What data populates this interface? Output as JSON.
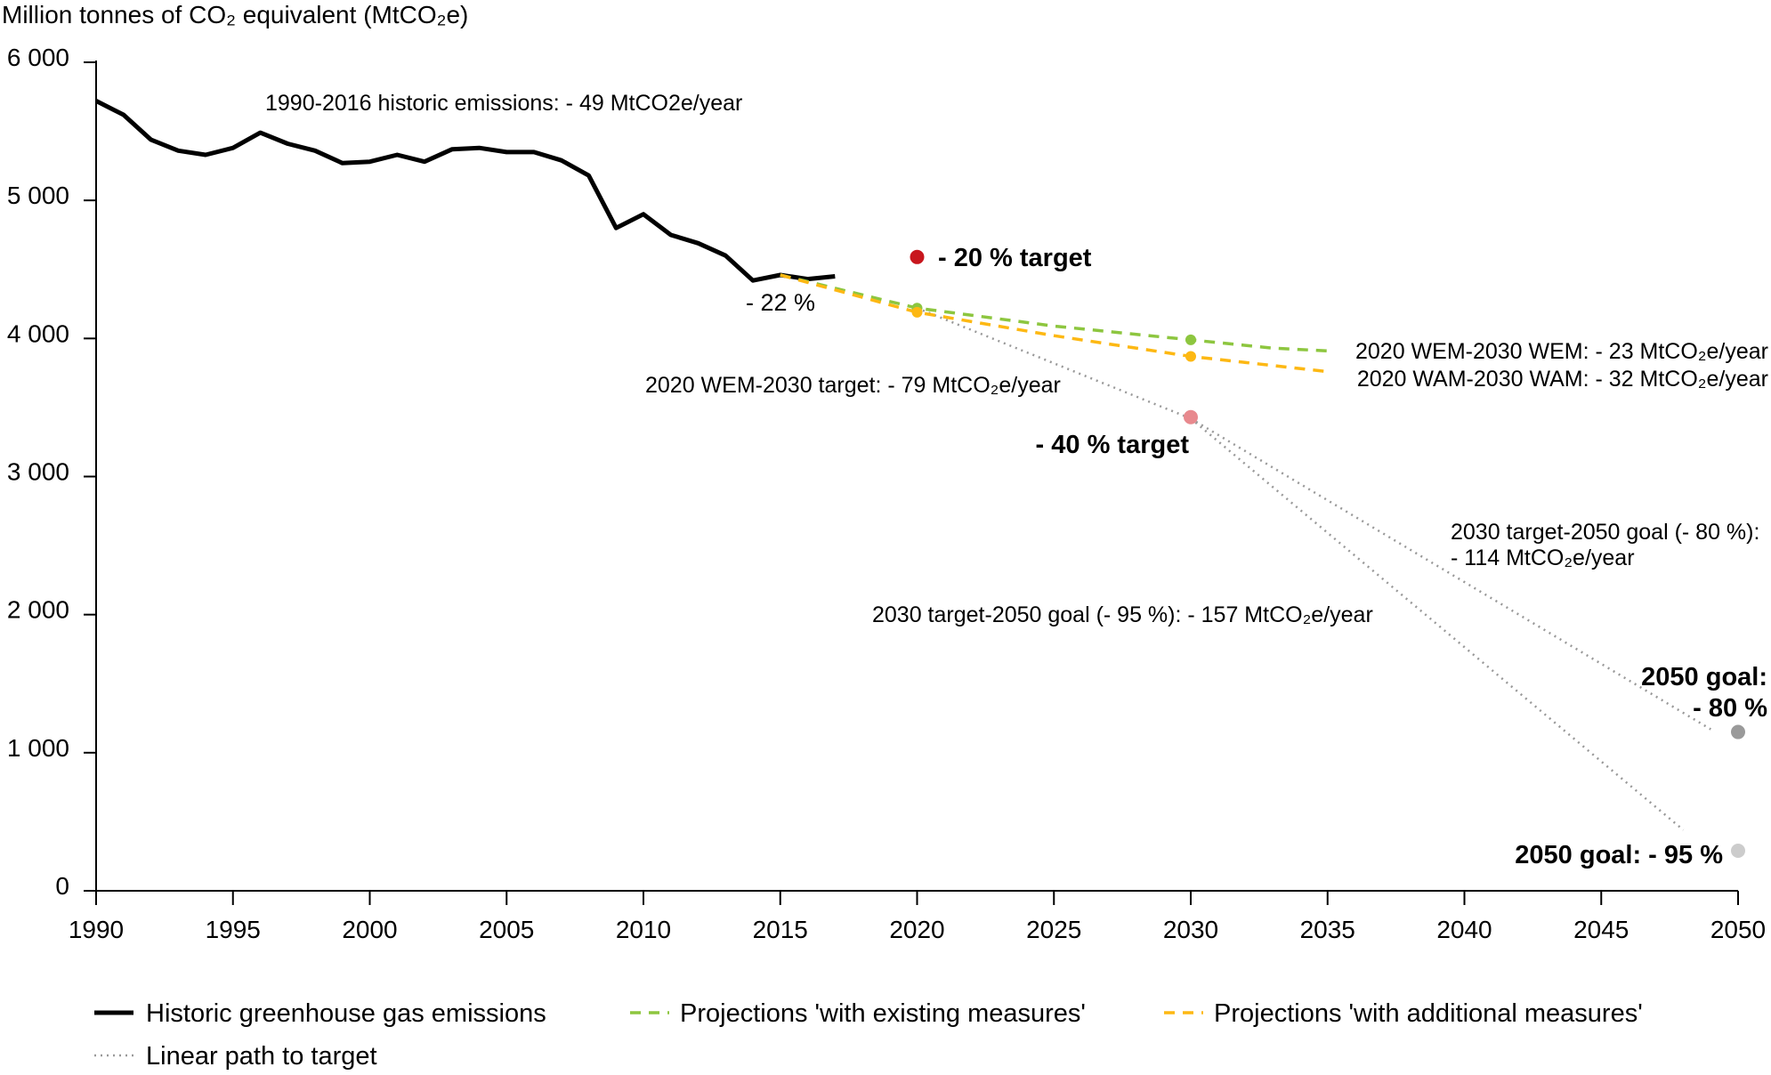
{
  "chart_data": {
    "type": "line",
    "ylabel": "Million tonnes of CO₂ equivalent (MtCO₂e)",
    "xlim": [
      1990,
      2050
    ],
    "ylim": [
      0,
      6000
    ],
    "xticks": [
      1990,
      1995,
      2000,
      2005,
      2010,
      2015,
      2020,
      2025,
      2030,
      2035,
      2040,
      2045,
      2050
    ],
    "xtick_labels": [
      "1990",
      "1995",
      "2000",
      "2005",
      "2010",
      "2015",
      "2020",
      "2025",
      "2030",
      "2035",
      "2040",
      "2045",
      "2050"
    ],
    "yticks": [
      0,
      1000,
      2000,
      3000,
      4000,
      5000,
      6000
    ],
    "ytick_labels": [
      "0",
      "1 000",
      "2 000",
      "3 000",
      "4 000",
      "5 000",
      "6 000"
    ],
    "grid": false,
    "legend_position": "bottom",
    "series": [
      {
        "name": "Historic greenhouse gas emissions",
        "style": "solid",
        "color": "#000000",
        "x": [
          1990,
          1991,
          1992,
          1993,
          1994,
          1995,
          1996,
          1997,
          1998,
          1999,
          2000,
          2001,
          2002,
          2003,
          2004,
          2005,
          2006,
          2007,
          2008,
          2009,
          2010,
          2011,
          2012,
          2013,
          2014,
          2015,
          2016,
          2017
        ],
        "y": [
          5720,
          5620,
          5440,
          5360,
          5330,
          5380,
          5490,
          5410,
          5360,
          5270,
          5280,
          5330,
          5280,
          5370,
          5380,
          5350,
          5350,
          5290,
          5180,
          4800,
          4900,
          4750,
          4690,
          4600,
          4420,
          4460,
          4430,
          4450
        ]
      },
      {
        "name": "Projections 'with existing measures'",
        "style": "dashed",
        "color": "#8dc63f",
        "x": [
          2015,
          2020,
          2025,
          2030,
          2033,
          2035
        ],
        "y": [
          4460,
          4220,
          4090,
          3990,
          3930,
          3910
        ]
      },
      {
        "name": "Projections 'with additional measures'",
        "style": "dashed",
        "color": "#fdb813",
        "x": [
          2015,
          2020,
          2025,
          2030,
          2035
        ],
        "y": [
          4460,
          4190,
          4020,
          3870,
          3760
        ]
      },
      {
        "name": "Linear path to target",
        "style": "dotted",
        "color": "#999999",
        "segments": [
          {
            "x": [
              2020,
              2030
            ],
            "y": [
              4220,
              3420
            ]
          },
          {
            "x": [
              2030,
              2049
            ],
            "y": [
              3420,
              1170
            ]
          },
          {
            "x": [
              2030,
              2048
            ],
            "y": [
              3420,
              440
            ]
          }
        ]
      }
    ],
    "points": [
      {
        "name": "- 20 % target point",
        "x": 2020,
        "y": 4590,
        "color": "#c8161d",
        "r": 8
      },
      {
        "name": "WEM 2020 point",
        "x": 2020,
        "y": 4220,
        "color": "#8dc63f",
        "r": 6
      },
      {
        "name": "WAM 2020 point",
        "x": 2020,
        "y": 4190,
        "color": "#fdb813",
        "r": 6
      },
      {
        "name": "WEM 2030 point",
        "x": 2030,
        "y": 3990,
        "color": "#8dc63f",
        "r": 6
      },
      {
        "name": "WAM 2030 point",
        "x": 2030,
        "y": 3870,
        "color": "#fdb813",
        "r": 6
      },
      {
        "name": "- 40 % target point",
        "x": 2030,
        "y": 3430,
        "color": "#e8898e",
        "r": 8
      },
      {
        "name": "2050 goal -80 % point",
        "x": 2050,
        "y": 1150,
        "color": "#9a9a9a",
        "r": 8
      },
      {
        "name": "2050 goal -95 % point",
        "x": 2050,
        "y": 290,
        "color": "#cccccc",
        "r": 8
      }
    ],
    "annotations": [
      {
        "text": "1990-2016 historic emissions: - 49 MtCO2e/year",
        "bold": false
      },
      {
        "text": "- 22 %",
        "bold": false
      },
      {
        "text": "- 20 % target",
        "bold": true
      },
      {
        "text": "2020 WEM-2030 target: - 79 MtCO₂e/year",
        "bold": false
      },
      {
        "text": "2020 WEM-2030 WEM: - 23 MtCO₂e/year",
        "bold": false
      },
      {
        "text": "2020 WAM-2030 WAM: - 32 MtCO₂e/year",
        "bold": false
      },
      {
        "text": "- 40 % target",
        "bold": true
      },
      {
        "text": "2030 target-2050 goal (- 80 %):",
        "bold": false
      },
      {
        "text": "- 114 MtCO₂e/year",
        "bold": false
      },
      {
        "text": "2030 target-2050 goal (- 95 %): - 157 MtCO₂e/year",
        "bold": false
      },
      {
        "text": "2050 goal:",
        "bold": true
      },
      {
        "text": "- 80 %",
        "bold": true
      },
      {
        "text": "2050 goal: - 95 %",
        "bold": true
      }
    ]
  },
  "legend": {
    "items": [
      {
        "label": "Historic greenhouse gas emissions",
        "style": "solid",
        "color": "#000000"
      },
      {
        "label": "Projections 'with existing measures'",
        "style": "dashed",
        "color": "#8dc63f"
      },
      {
        "label": "Projections 'with additional measures'",
        "style": "dashed",
        "color": "#fdb813"
      },
      {
        "label": "Linear path to target",
        "style": "dotted",
        "color": "#999999"
      }
    ]
  }
}
